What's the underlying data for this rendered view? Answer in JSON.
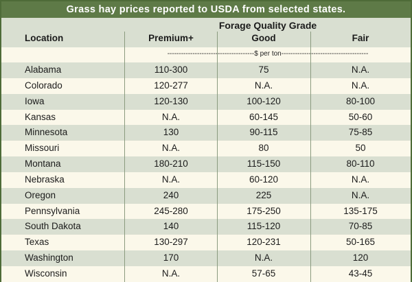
{
  "title": "Grass hay prices reported to USDA from selected states.",
  "header": {
    "location": "Location",
    "group": "Forage Quality Grade",
    "premium": "Premium+",
    "good": "Good",
    "fair": "Fair"
  },
  "units": "--------------------------------------$ per ton--------------------------------------",
  "rows": [
    {
      "location": "Alabama",
      "premium": "110-300",
      "good": "75",
      "fair": "N.A."
    },
    {
      "location": "Colorado",
      "premium": "120-277",
      "good": "N.A.",
      "fair": "N.A."
    },
    {
      "location": "Iowa",
      "premium": "120-130",
      "good": "100-120",
      "fair": "80-100"
    },
    {
      "location": "Kansas",
      "premium": "N.A.",
      "good": "60-145",
      "fair": "50-60"
    },
    {
      "location": "Minnesota",
      "premium": "130",
      "good": "90-115",
      "fair": "75-85"
    },
    {
      "location": "Missouri",
      "premium": "N.A.",
      "good": "80",
      "fair": "50"
    },
    {
      "location": "Montana",
      "premium": "180-210",
      "good": "115-150",
      "fair": "80-110"
    },
    {
      "location": "Nebraska",
      "premium": "N.A.",
      "good": "60-120",
      "fair": "N.A."
    },
    {
      "location": "Oregon",
      "premium": "240",
      "good": "225",
      "fair": "N.A."
    },
    {
      "location": "Pennsylvania",
      "premium": "245-280",
      "good": "175-250",
      "fair": "135-175"
    },
    {
      "location": "South Dakota",
      "premium": "140",
      "good": "115-120",
      "fair": "70-85"
    },
    {
      "location": "Texas",
      "premium": "130-297",
      "good": "120-231",
      "fair": "50-165"
    },
    {
      "location": "Washington",
      "premium": "170",
      "good": "N.A.",
      "fair": "120"
    },
    {
      "location": "Wisconsin",
      "premium": "N.A.",
      "good": "57-65",
      "fair": "43-45"
    }
  ],
  "colors": {
    "title_bar": "#5e7a47",
    "shaded_row": "#d9dfd1",
    "plain_row": "#fbf8ea",
    "border": "#4e6b38"
  }
}
